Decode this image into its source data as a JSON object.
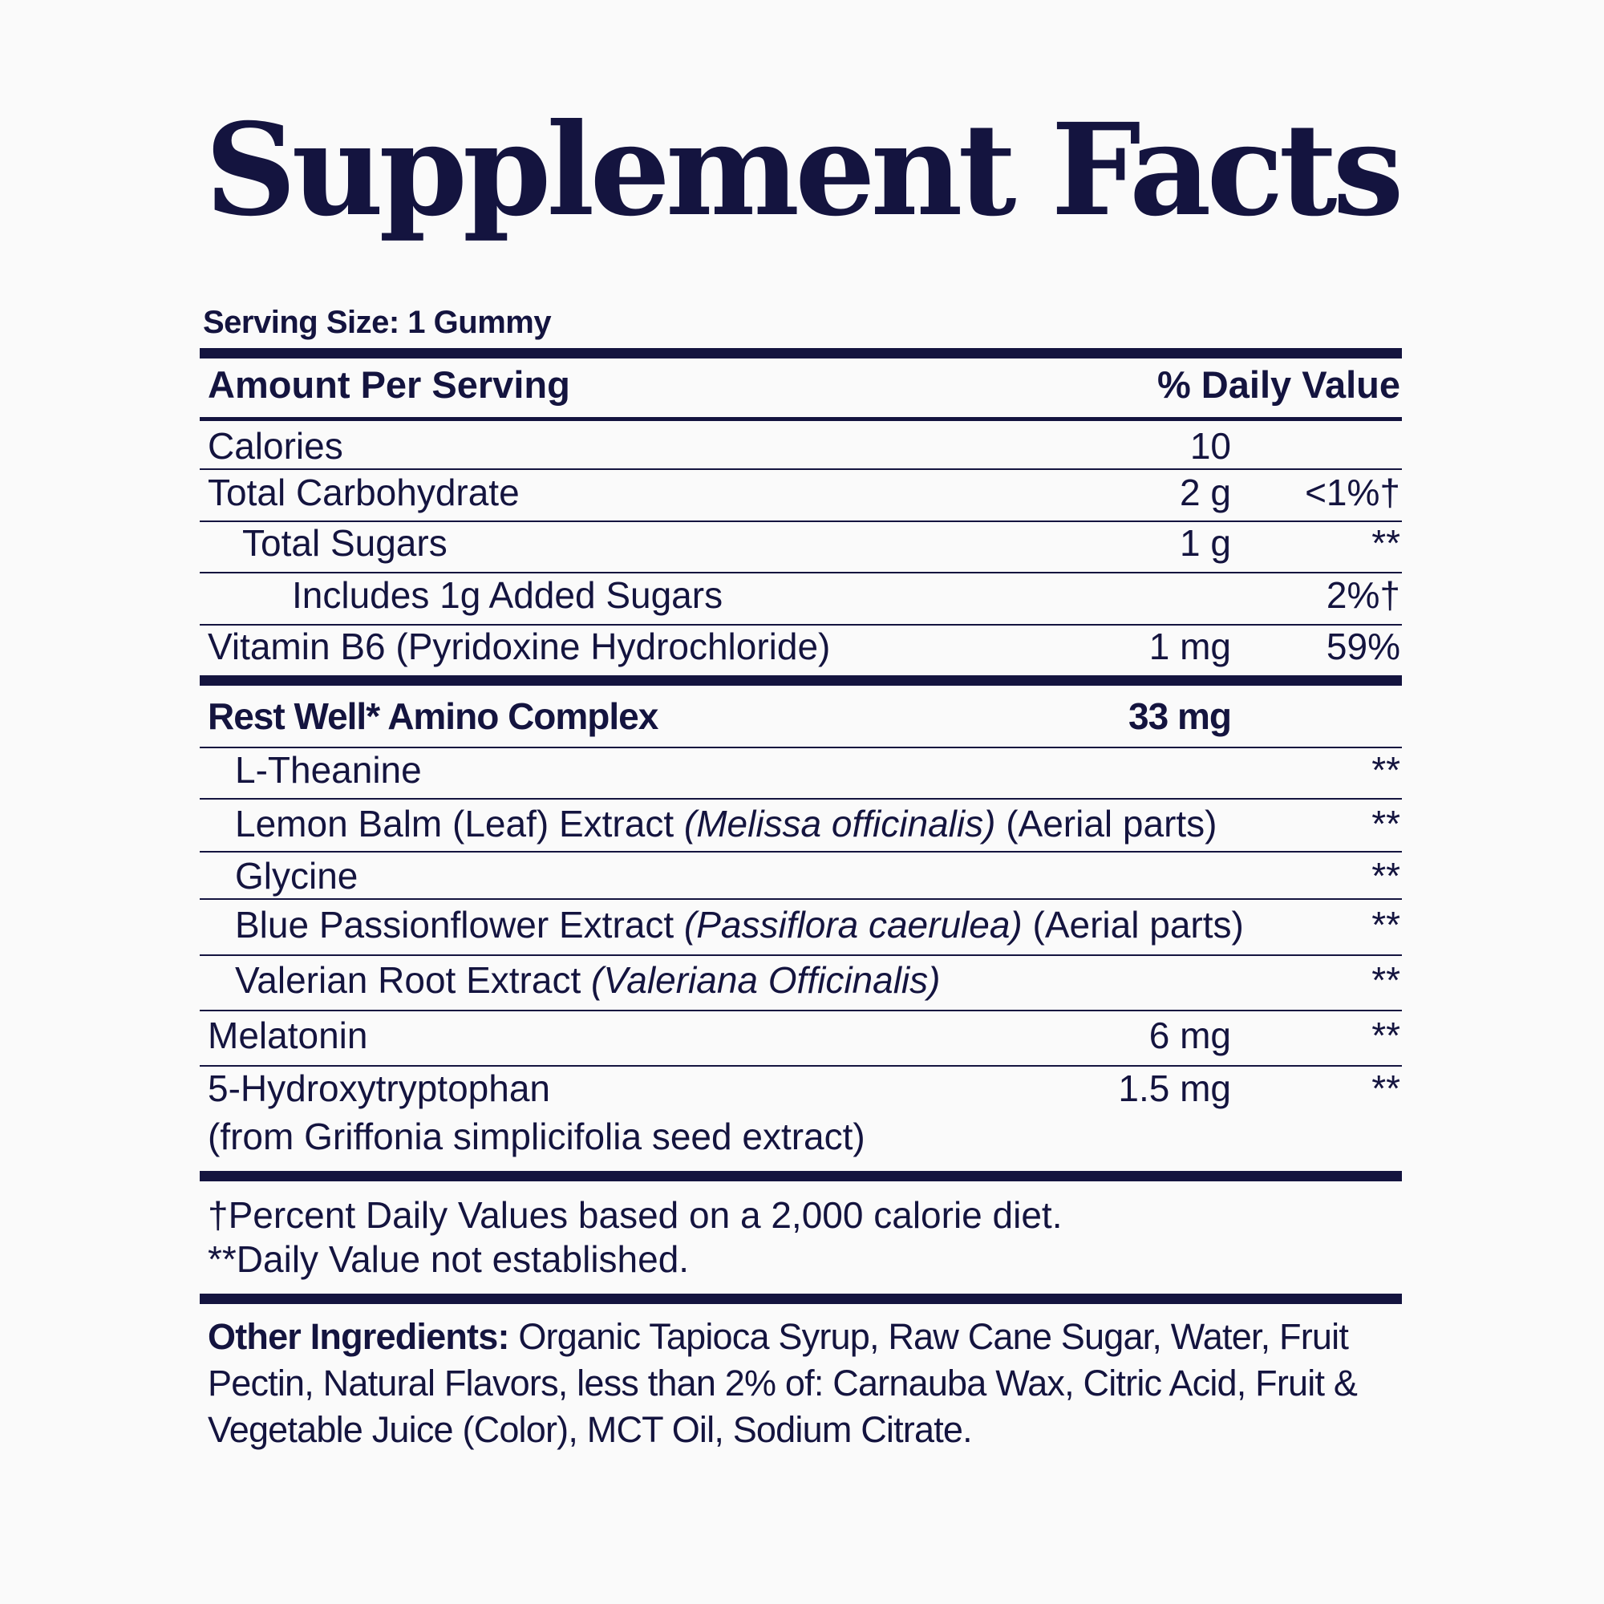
{
  "title": "Supplement Facts",
  "serving_size": "Serving Size: 1 Gummy",
  "header": {
    "amount": "Amount Per Serving",
    "daily_value": "% Daily Value"
  },
  "nutrients": [
    {
      "label": "Calories",
      "amount": "10",
      "dv": ""
    },
    {
      "label": "Total Carbohydrate",
      "amount": "2 g",
      "dv": "<1%†"
    },
    {
      "label": "Total Sugars",
      "amount": "1 g",
      "dv": "**"
    },
    {
      "label": "Includes 1g Added Sugars",
      "amount": "",
      "dv": "2%†"
    },
    {
      "label": "Vitamin B6 (Pyridoxine Hydrochloride)",
      "amount": "1 mg",
      "dv": "59%"
    }
  ],
  "complex": {
    "label": "Rest Well* Amino Complex",
    "amount": "33 mg"
  },
  "ingredients": [
    {
      "label": "L-Theanine",
      "latin": "",
      "suffix": "",
      "amount": "",
      "dv": "**"
    },
    {
      "label": "Lemon Balm (Leaf) Extract ",
      "latin": "(Melissa officinalis)",
      "suffix": " (Aerial parts)",
      "amount": "",
      "dv": "**"
    },
    {
      "label": "Glycine",
      "latin": "",
      "suffix": "",
      "amount": "",
      "dv": "**"
    },
    {
      "label": "Blue Passionflower Extract ",
      "latin": "(Passiflora caerulea)",
      "suffix": " (Aerial parts)",
      "amount": "",
      "dv": "**"
    },
    {
      "label": "Valerian Root Extract ",
      "latin": "(Valeriana Officinalis)",
      "suffix": "",
      "amount": "",
      "dv": "**"
    },
    {
      "label": "Melatonin",
      "latin": "",
      "suffix": "",
      "amount": "6 mg",
      "dv": "**"
    },
    {
      "label": "5-Hydroxytryptophan",
      "latin": "",
      "suffix": "",
      "amount": "1.5 mg",
      "dv": "**",
      "sub": "(from Griffonia simplicifolia seed extract)"
    }
  ],
  "footnotes": [
    "†Percent Daily Values based on a 2,000 calorie diet.",
    "**Daily Value not established."
  ],
  "other_ingredients": {
    "label": "Other Ingredients:",
    "text": " Organic Tapioca Syrup, Raw Cane Sugar, Water, Fruit Pectin, Natural Flavors, less than 2% of: Carnauba Wax, Citric Acid, Fruit & Vegetable Juice (Color), MCT Oil, Sodium Citrate."
  },
  "colors": {
    "text": "#14143f",
    "background": "#fafafa"
  }
}
